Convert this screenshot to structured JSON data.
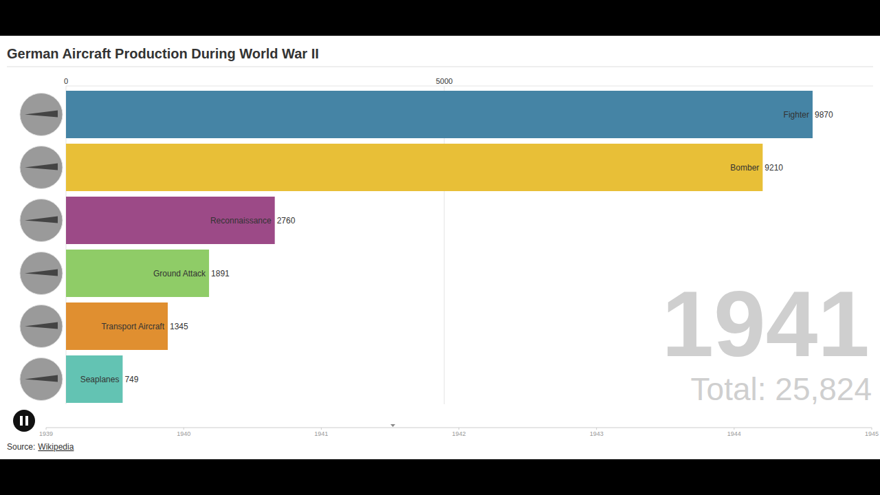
{
  "chart_data": {
    "type": "bar",
    "title": "German Aircraft Production During World War II",
    "orientation": "horizontal",
    "categories": [
      "Fighter",
      "Bomber",
      "Reconnaissance",
      "Ground Attack",
      "Transport Aircraft",
      "Seaplanes"
    ],
    "values": [
      9870,
      9210,
      2760,
      1891,
      1345,
      749
    ],
    "colors": [
      "#4584a5",
      "#e8bf37",
      "#9c4a87",
      "#8fcc67",
      "#e08f30",
      "#63c3b3"
    ],
    "xlim": [
      0,
      10670
    ],
    "xticks": [
      0,
      5000
    ],
    "grid": true,
    "data_labels": true,
    "year_label": "1941",
    "total_label": "Total: 25,824",
    "timeline": {
      "lim": [
        1939,
        1945
      ],
      "ticks": [
        1939,
        1940,
        1941,
        1942,
        1943,
        1944,
        1945
      ],
      "current": 1941.52
    },
    "source_label": "Source:",
    "source": "Wikipedia"
  }
}
